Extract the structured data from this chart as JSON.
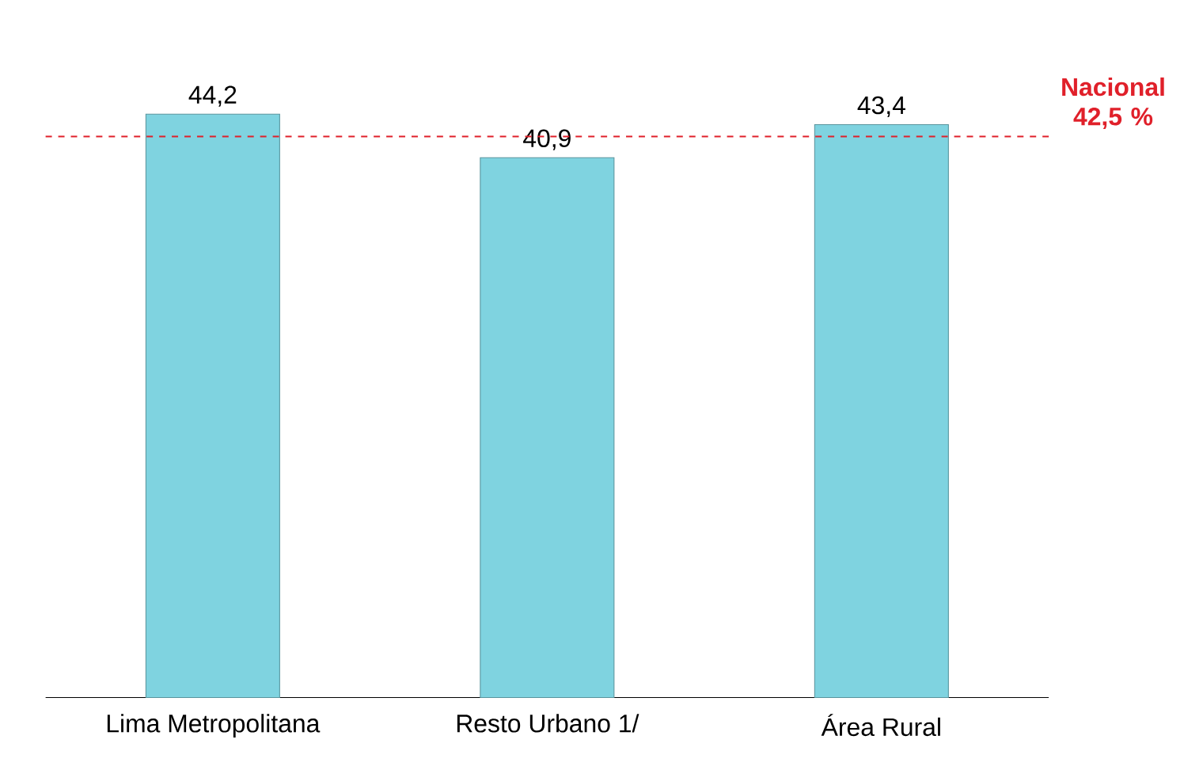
{
  "chart_data": {
    "type": "bar",
    "categories": [
      "Lima Metropolitana",
      "Resto Urbano 1/",
      "Área Rural"
    ],
    "values": [
      44.2,
      40.9,
      43.4
    ],
    "value_labels": [
      "44,2",
      "40,9",
      "43,4"
    ],
    "color": "#7fd3e0",
    "ref_lines": [
      {
        "axis": "y",
        "value": 42.5,
        "label": "Nacional 42,5 %",
        "color": "#e0202a",
        "line_style": "dashed"
      }
    ]
  }
}
